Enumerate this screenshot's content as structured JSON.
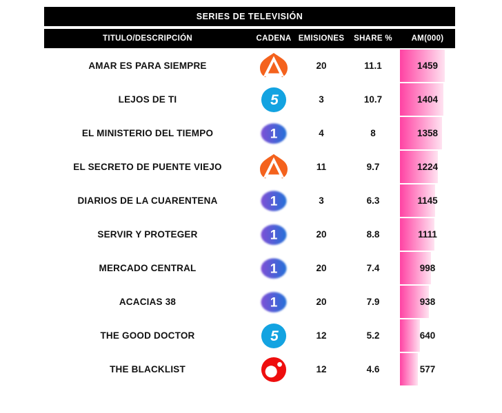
{
  "title": "SERIES DE TELEVISIÓN",
  "table": {
    "columns": [
      "TITULO/DESCRIPCIÓN",
      "CADENA",
      "EMISIONES",
      "SHARE %",
      "AM(000)"
    ]
  },
  "icons": {
    "antena3": "antena3-logo",
    "telecinco": "telecinco-logo",
    "la1": "la1-logo",
    "cuatro": "cuatro-red-ball-logo"
  },
  "colors": {
    "header_bg": "#000000",
    "header_text": "#ffffff",
    "row_text": "#111111",
    "bar_gradient_start": "#ff42a3",
    "bar_gradient_end": "#ffe3f1",
    "antena3_orange": "#f4621d",
    "telecinco_blue": "#13a3e1",
    "la1_purple": "#7e4fd6",
    "la1_blue": "#2470d8",
    "cuatro_red": "#ee0e0e"
  },
  "chart_data": {
    "type": "table",
    "title": "SERIES DE TELEVISIÓN",
    "columns": [
      "TITULO/DESCRIPCIÓN",
      "CADENA",
      "EMISIONES",
      "SHARE %",
      "AM(000)"
    ],
    "bar_encoded_column": "AM(000)",
    "bar_max_value": 1459,
    "rows": [
      {
        "title": "AMAR ES PARA SIEMPRE",
        "channel": "antena3",
        "emisiones": "20",
        "share": "11.1",
        "am": 1459
      },
      {
        "title": "LEJOS DE TI",
        "channel": "telecinco",
        "emisiones": "3",
        "share": "10.7",
        "am": 1404
      },
      {
        "title": "EL MINISTERIO DEL TIEMPO",
        "channel": "la1",
        "emisiones": "4",
        "share": "8",
        "am": 1358
      },
      {
        "title": "EL SECRETO DE PUENTE VIEJO",
        "channel": "antena3",
        "emisiones": "11",
        "share": "9.7",
        "am": 1224
      },
      {
        "title": "DIARIOS DE LA CUARENTENA",
        "channel": "la1",
        "emisiones": "3",
        "share": "6.3",
        "am": 1145
      },
      {
        "title": "SERVIR Y PROTEGER",
        "channel": "la1",
        "emisiones": "20",
        "share": "8.8",
        "am": 1111
      },
      {
        "title": "MERCADO CENTRAL",
        "channel": "la1",
        "emisiones": "20",
        "share": "7.4",
        "am": 998
      },
      {
        "title": "ACACIAS 38",
        "channel": "la1",
        "emisiones": "20",
        "share": "7.9",
        "am": 938
      },
      {
        "title": "THE GOOD DOCTOR",
        "channel": "telecinco",
        "emisiones": "12",
        "share": "5.2",
        "am": 640
      },
      {
        "title": "THE BLACKLIST",
        "channel": "cuatro",
        "emisiones": "12",
        "share": "4.6",
        "am": 577
      }
    ]
  }
}
